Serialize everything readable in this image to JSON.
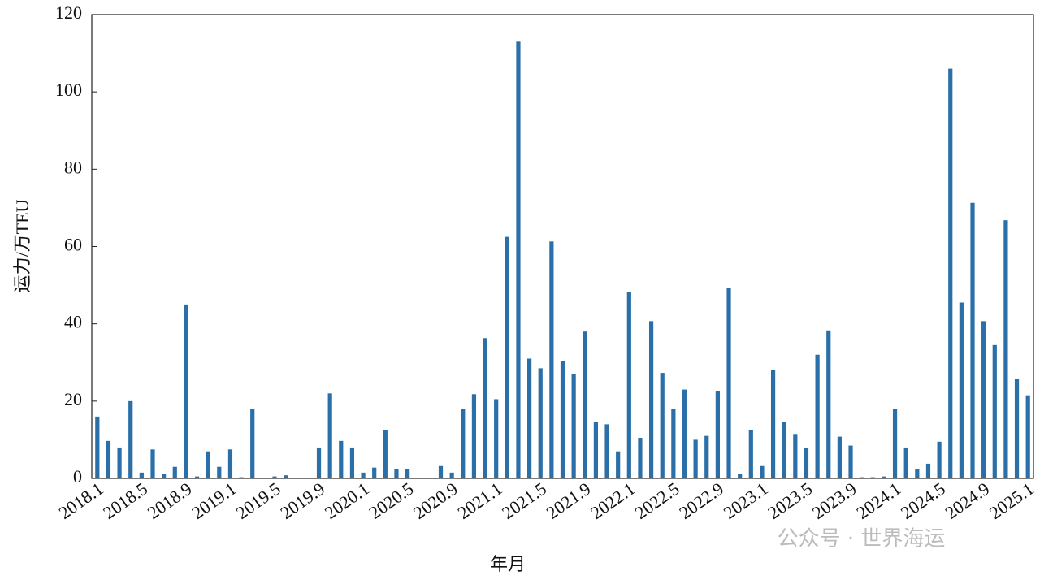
{
  "chart_data": {
    "type": "bar",
    "ylabel": "运力/万TEU",
    "xlabel": "年月",
    "watermark": "公众号 · 世界海运",
    "categories": [
      "2018.1",
      null,
      null,
      null,
      "2018.5",
      null,
      null,
      null,
      "2018.9",
      null,
      null,
      null,
      "2019.1",
      null,
      null,
      null,
      "2019.5",
      null,
      null,
      null,
      "2019.9",
      null,
      null,
      null,
      "2020.1",
      null,
      null,
      null,
      "2020.5",
      null,
      null,
      null,
      "2020.9",
      null,
      null,
      null,
      "2021.1",
      null,
      null,
      null,
      "2021.5",
      null,
      null,
      null,
      "2021.9",
      null,
      null,
      null,
      "2022.1",
      null,
      null,
      null,
      "2022.5",
      null,
      null,
      null,
      "2022.9",
      null,
      null,
      null,
      "2023.1",
      null,
      null,
      null,
      "2023.5",
      null,
      null,
      null,
      "2023.9",
      null,
      null,
      null,
      "2024.1",
      null,
      null,
      null,
      "2024.5",
      null,
      null,
      null,
      "2024.9",
      null,
      null,
      null,
      "2025.1"
    ],
    "values": [
      16,
      9.7,
      8,
      20,
      1.5,
      7.5,
      1.2,
      3,
      45,
      0.5,
      7,
      3,
      7.5,
      0.3,
      18,
      0,
      0.5,
      0.8,
      0,
      0,
      8,
      22,
      9.7,
      8,
      1.5,
      2.8,
      12.5,
      2.5,
      2.5,
      0.2,
      0,
      3.2,
      1.5,
      18,
      21.8,
      36.3,
      20.5,
      62.5,
      113,
      31,
      28.5,
      61.3,
      30.3,
      27,
      38,
      14.5,
      14,
      7,
      48.2,
      10.5,
      40.7,
      27.3,
      18,
      23,
      10,
      11,
      22.5,
      49.3,
      1.2,
      12.5,
      3.2,
      28,
      14.5,
      11.5,
      7.8,
      32,
      38.3,
      10.8,
      8.5,
      0.3,
      0.3,
      0.5,
      18,
      8,
      2.3,
      3.8,
      9.5,
      106,
      45.5,
      71.3,
      40.7,
      34.5,
      66.8,
      25.8,
      21.5
    ],
    "color": "#2a6fa8",
    "ylim": [
      0,
      120
    ],
    "yticks": [
      0,
      20,
      40,
      60,
      80,
      100,
      120
    ],
    "grid": false
  }
}
